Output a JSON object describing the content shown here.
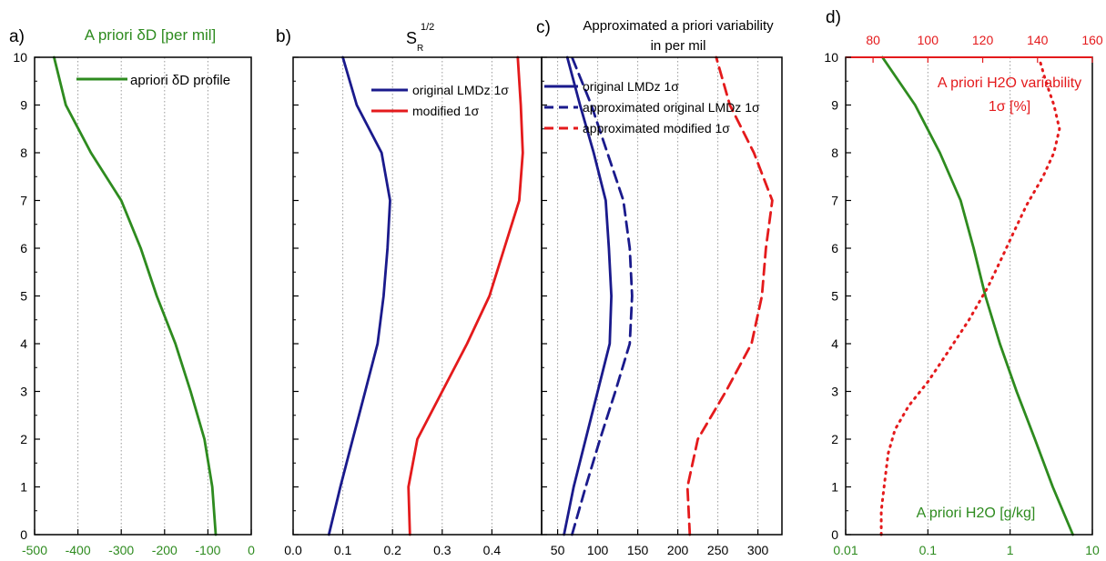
{
  "chart_data": [
    {
      "panel_label": "a)",
      "type": "line",
      "title": "A priori δD [per mil]",
      "title_color": "#2e8b1f",
      "xlim": [
        -500,
        0
      ],
      "ylim": [
        0,
        10
      ],
      "x_ticks": [
        "-500",
        "-400",
        "-300",
        "-200",
        "-100",
        "0"
      ],
      "y_ticks": [
        "0",
        "1",
        "2",
        "3",
        "4",
        "5",
        "6",
        "7",
        "8",
        "9",
        "10"
      ],
      "tick_color": "#2e8b1f",
      "series": [
        {
          "name": "apriori δD profile",
          "color": "#2e8b1f",
          "style": "solid",
          "points": [
            [
              -82,
              0
            ],
            [
              -90,
              1
            ],
            [
              -108,
              2
            ],
            [
              -140,
              3
            ],
            [
              -175,
              4
            ],
            [
              -218,
              5
            ],
            [
              -255,
              6
            ],
            [
              -300,
              7
            ],
            [
              -370,
              8
            ],
            [
              -428,
              9
            ],
            [
              -455,
              10
            ]
          ]
        }
      ],
      "legend_position": "top-right"
    },
    {
      "panel_label": "b)",
      "type": "line",
      "title": "S",
      "title_sub": "R",
      "title_sup": "1/2",
      "xlim": [
        0,
        0.5
      ],
      "ylim": [
        0,
        10
      ],
      "x_ticks": [
        "0.0",
        "0.1",
        "0.2",
        "0.3",
        "0.4"
      ],
      "series": [
        {
          "name": "original LMDz 1σ",
          "color": "#1a1a8c",
          "style": "solid",
          "points": [
            [
              0.072,
              0
            ],
            [
              0.095,
              1
            ],
            [
              0.12,
              2
            ],
            [
              0.145,
              3
            ],
            [
              0.17,
              4
            ],
            [
              0.182,
              5
            ],
            [
              0.19,
              6
            ],
            [
              0.195,
              7
            ],
            [
              0.178,
              8
            ],
            [
              0.128,
              9
            ],
            [
              0.1,
              10
            ]
          ]
        },
        {
          "name": "modified 1σ",
          "color": "#e41a1c",
          "style": "solid",
          "points": [
            [
              0.235,
              0
            ],
            [
              0.232,
              1
            ],
            [
              0.25,
              2
            ],
            [
              0.3,
              3
            ],
            [
              0.35,
              4
            ],
            [
              0.395,
              5
            ],
            [
              0.425,
              6
            ],
            [
              0.455,
              7
            ],
            [
              0.462,
              8
            ],
            [
              0.458,
              9
            ],
            [
              0.452,
              10
            ]
          ]
        }
      ],
      "legend_position": "top-right"
    },
    {
      "panel_label": "c)",
      "type": "line",
      "title": "Approximated a priori variability",
      "title_line2": "in per mil",
      "xlim": [
        30,
        330
      ],
      "ylim": [
        0,
        10
      ],
      "x_ticks": [
        "50",
        "100",
        "150",
        "200",
        "250",
        "300"
      ],
      "series": [
        {
          "name": "original LMDz 1σ",
          "color": "#1a1a8c",
          "style": "solid",
          "points": [
            [
              58,
              0
            ],
            [
              70,
              1
            ],
            [
              85,
              2
            ],
            [
              100,
              3
            ],
            [
              115,
              4
            ],
            [
              117,
              5
            ],
            [
              114,
              6
            ],
            [
              110,
              7
            ],
            [
              95,
              8
            ],
            [
              78,
              9
            ],
            [
              62,
              10
            ]
          ]
        },
        {
          "name": "approximated original LMDz 1σ",
          "color": "#1a1a8c",
          "style": "dashed",
          "points": [
            [
              68,
              0
            ],
            [
              85,
              1
            ],
            [
              103,
              2
            ],
            [
              122,
              3
            ],
            [
              140,
              4
            ],
            [
              143,
              5
            ],
            [
              140,
              6
            ],
            [
              132,
              7
            ],
            [
              112,
              8
            ],
            [
              92,
              9
            ],
            [
              68,
              10
            ]
          ]
        },
        {
          "name": "approximated modified 1σ",
          "color": "#e41a1c",
          "style": "dashed",
          "points": [
            [
              215,
              0
            ],
            [
              212,
              1
            ],
            [
              225,
              2
            ],
            [
              260,
              3
            ],
            [
              292,
              4
            ],
            [
              305,
              5
            ],
            [
              310,
              6
            ],
            [
              318,
              7
            ],
            [
              295,
              8
            ],
            [
              265,
              9
            ],
            [
              248,
              10
            ]
          ]
        }
      ],
      "legend_position": "top-right"
    },
    {
      "panel_label": "d)",
      "type": "line",
      "x_scale": "log",
      "xlim": [
        0.01,
        10
      ],
      "ylim": [
        0,
        10
      ],
      "x_ticks": [
        "0.01",
        "0.1",
        "1",
        "10"
      ],
      "x_tick_color": "#2e8b1f",
      "top_axis": {
        "xlim": [
          70,
          160
        ],
        "ticks": [
          "80",
          "100",
          "120",
          "140",
          "160"
        ],
        "color": "#e41a1c"
      },
      "annotation_top": "A priori H2O variability",
      "annotation_top_line2": "1σ [%]",
      "annotation_bottom": "A priori H2O [g/kg]",
      "series": [
        {
          "name": "A priori H2O [g/kg]",
          "color": "#2e8b1f",
          "style": "solid",
          "axis": "bottom",
          "points": [
            [
              5.8,
              0
            ],
            [
              3.3,
              1
            ],
            [
              2.0,
              2
            ],
            [
              1.2,
              3
            ],
            [
              0.75,
              4
            ],
            [
              0.5,
              5
            ],
            [
              0.36,
              6
            ],
            [
              0.25,
              7
            ],
            [
              0.14,
              8
            ],
            [
              0.07,
              9
            ],
            [
              0.028,
              10
            ]
          ]
        },
        {
          "name": "A priori H2O variability 1σ [%]",
          "color": "#e41a1c",
          "style": "dotted",
          "axis": "top",
          "points": [
            [
              83,
              0
            ],
            [
              83,
              0.5
            ],
            [
              84,
              1
            ],
            [
              85.5,
              1.7
            ],
            [
              88,
              2.2
            ],
            [
              93,
              2.7
            ],
            [
              100,
              3.2
            ],
            [
              107,
              3.8
            ],
            [
              115,
              4.5
            ],
            [
              122,
              5.2
            ],
            [
              127,
              5.8
            ],
            [
              131,
              6.3
            ],
            [
              136,
              6.9
            ],
            [
              142,
              7.5
            ],
            [
              146,
              8
            ],
            [
              148,
              8.5
            ],
            [
              146,
              9
            ],
            [
              143,
              9.5
            ],
            [
              141,
              9.9
            ]
          ]
        }
      ]
    }
  ]
}
